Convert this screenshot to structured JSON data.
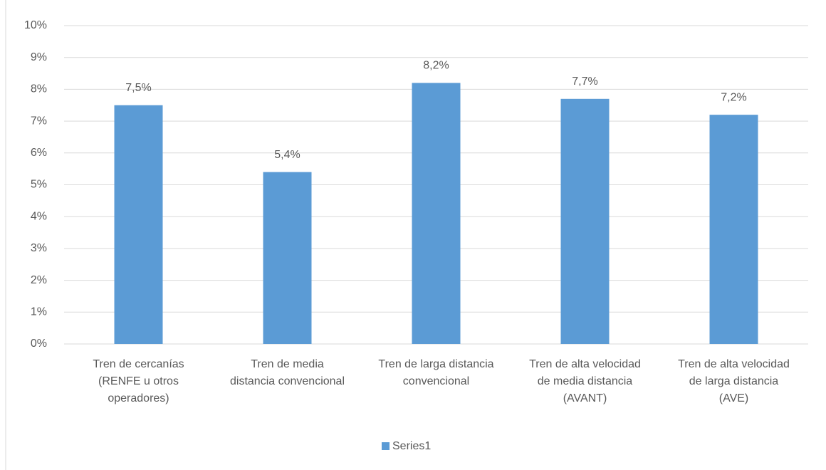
{
  "chart_data": {
    "type": "bar",
    "categories": [
      "Tren de cercanías (RENFE u otros operadores)",
      "Tren de media distancia convencional",
      "Tren de larga distancia convencional",
      "Tren de alta velocidad de media distancia (AVANT)",
      "Tren de alta velocidad de larga distancia (AVE)"
    ],
    "series": [
      {
        "name": "Series1",
        "color": "#5b9bd5",
        "values": [
          7.5,
          5.4,
          8.2,
          7.7,
          7.2
        ],
        "value_labels": [
          "7,5%",
          "5,4%",
          "8,2%",
          "7,7%",
          "7,2%"
        ]
      }
    ],
    "ylim": [
      0,
      10
    ],
    "yticks": [
      {
        "value": 0,
        "label": "0%"
      },
      {
        "value": 1,
        "label": "1%"
      },
      {
        "value": 2,
        "label": "2%"
      },
      {
        "value": 3,
        "label": "3%"
      },
      {
        "value": 4,
        "label": "4%"
      },
      {
        "value": 5,
        "label": "5%"
      },
      {
        "value": 6,
        "label": "6%"
      },
      {
        "value": 7,
        "label": "7%"
      },
      {
        "value": 8,
        "label": "8%"
      },
      {
        "value": 9,
        "label": "9%"
      },
      {
        "value": 10,
        "label": "10%"
      }
    ],
    "grid": true,
    "legend": "bottom"
  }
}
